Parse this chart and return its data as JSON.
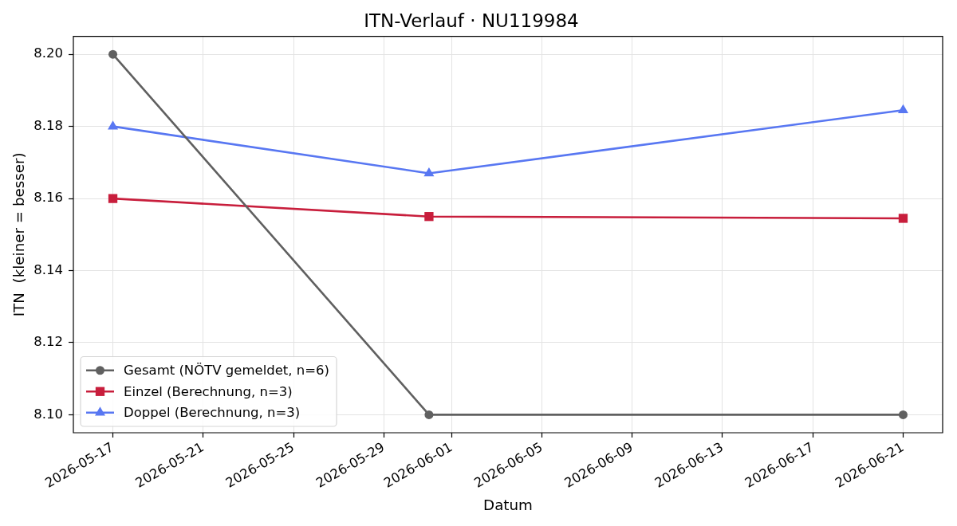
{
  "chart_data": {
    "type": "line",
    "title": "ITN-Verlauf · NU119984",
    "xlabel": "Datum",
    "ylabel": "ITN  (kleiner = besser)",
    "x": [
      "2026-05-17",
      "2026-05-31",
      "2026-06-21"
    ],
    "series": [
      {
        "name": "Gesamt (NÖTV gemeldet, n=6)",
        "color": "#606060",
        "marker": "circle",
        "values": [
          8.2,
          8.1,
          8.1
        ]
      },
      {
        "name": "Einzel (Berechnung, n=3)",
        "color": "#c81e3c",
        "marker": "square",
        "values": [
          8.16,
          8.155,
          8.1545
        ]
      },
      {
        "name": "Doppel (Berechnung, n=3)",
        "color": "#5877f2",
        "marker": "triangle",
        "values": [
          8.18,
          8.167,
          8.1845
        ]
      }
    ],
    "xlim": [
      "2026-05-15T06:00",
      "2026-06-22T18:00"
    ],
    "xticks": [
      "2026-05-17",
      "2026-05-21",
      "2026-05-25",
      "2026-05-29",
      "2026-06-01",
      "2026-06-05",
      "2026-06-09",
      "2026-06-13",
      "2026-06-17",
      "2026-06-21"
    ],
    "ylim": [
      8.095,
      8.205
    ],
    "yticks": [
      {
        "value": 8.1,
        "label": "8.10"
      },
      {
        "value": 8.12,
        "label": "8.12"
      },
      {
        "value": 8.14,
        "label": "8.14"
      },
      {
        "value": 8.16,
        "label": "8.16"
      },
      {
        "value": 8.18,
        "label": "8.18"
      },
      {
        "value": 8.2,
        "label": "8.20"
      }
    ],
    "grid": true,
    "legend": "bottom left"
  }
}
